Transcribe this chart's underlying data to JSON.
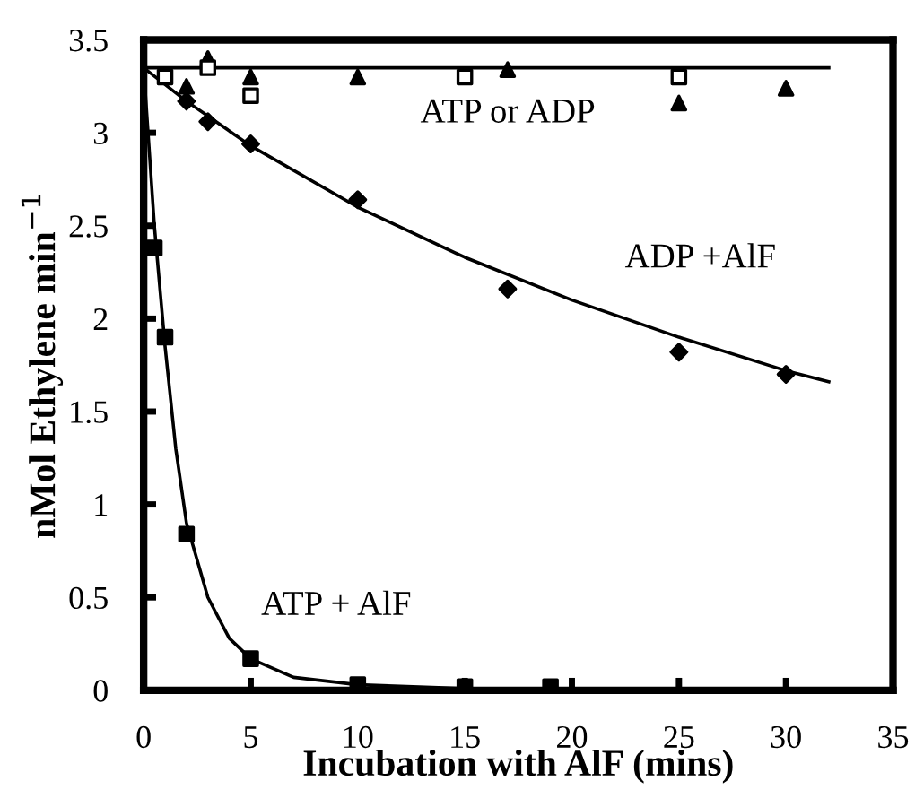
{
  "chart_data": {
    "type": "scatter",
    "xlabel": "Incubation with AlF (mins)",
    "ylabel": "nMol Ethylene min$^{−1}$",
    "xlim": [
      0,
      35
    ],
    "xticks": [
      0,
      5,
      10,
      15,
      20,
      25,
      30,
      35
    ],
    "ylim": [
      0,
      3.5
    ],
    "yticks": [
      0,
      0.5,
      1,
      1.5,
      2,
      2.5,
      3,
      3.5
    ],
    "grid": false,
    "series": [
      {
        "marker": "square",
        "color": "#000000",
        "x": [
          0.5,
          1,
          2,
          5,
          10,
          15,
          19
        ],
        "values": [
          2.38,
          1.9,
          0.84,
          0.17,
          0.03,
          0.02,
          0.02
        ]
      },
      {
        "marker": "diamond",
        "color": "#000000",
        "x": [
          2,
          3,
          5,
          10,
          17,
          25,
          30
        ],
        "values": [
          3.17,
          3.06,
          2.94,
          2.64,
          2.16,
          1.82,
          1.7
        ]
      },
      {
        "marker": "triangle",
        "color": "#000000",
        "x": [
          2,
          3,
          5,
          10,
          17,
          25,
          30
        ],
        "values": [
          3.25,
          3.4,
          3.3,
          3.3,
          3.34,
          3.16,
          3.24
        ]
      },
      {
        "marker": "square",
        "color": "#ffffff",
        "x": [
          1,
          3,
          5,
          15,
          25
        ],
        "values": [
          3.3,
          3.35,
          3.2,
          3.3,
          3.3
        ]
      },
      {
        "type": "line",
        "color": "#000000",
        "x": [
          0,
          0.5,
          1,
          1.5,
          2,
          3,
          4,
          5,
          7,
          10,
          15,
          20
        ],
        "values": [
          3.35,
          2.5,
          1.85,
          1.3,
          0.9,
          0.5,
          0.28,
          0.17,
          0.07,
          0.03,
          0.01,
          0.0
        ]
      },
      {
        "type": "line",
        "color": "#000000",
        "x": [
          0,
          2,
          5,
          10,
          15,
          20,
          25,
          30,
          32
        ],
        "values": [
          3.35,
          3.17,
          2.93,
          2.6,
          2.33,
          2.1,
          1.9,
          1.72,
          1.66
        ]
      },
      {
        "type": "line",
        "color": "#000000",
        "x": [
          0,
          32
        ],
        "values": [
          3.35,
          3.35
        ]
      }
    ],
    "annotations": [
      "ATP or ADP",
      "ADP +AlF",
      "ATP + AlF"
    ]
  }
}
